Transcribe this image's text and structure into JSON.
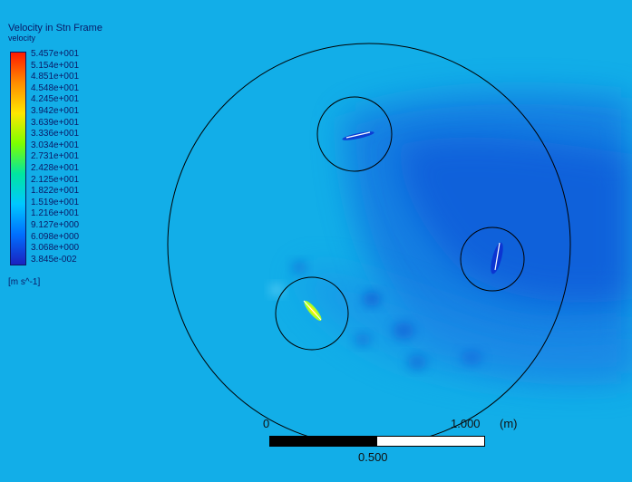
{
  "colors": {
    "background": "#12aee8",
    "wake": "#1570e0",
    "wake_core": "#0b55d8",
    "outline": "#000000",
    "legend_text": "#0a1a66"
  },
  "legend": {
    "title": "Velocity in Stn Frame",
    "variable": "velocity",
    "unit": "[m s^-1]",
    "ticks": [
      "5.457e+001",
      "5.154e+001",
      "4.851e+001",
      "4.548e+001",
      "4.245e+001",
      "3.942e+001",
      "3.639e+001",
      "3.336e+001",
      "3.034e+001",
      "2.731e+001",
      "2.428e+001",
      "2.125e+001",
      "1.822e+001",
      "1.519e+001",
      "1.216e+001",
      "9.127e+000",
      "6.098e+000",
      "3.068e+000",
      "3.845e-002"
    ],
    "colormap": [
      "#ff1a00",
      "#ff8c00",
      "#ffe600",
      "#7dff00",
      "#00e6a0",
      "#00c8ff",
      "#0070ff",
      "#1a22c0"
    ]
  },
  "scale_bar": {
    "label_start": "0",
    "label_end": "1.000",
    "label_unit": "(m)",
    "label_mid": "0.500"
  }
}
